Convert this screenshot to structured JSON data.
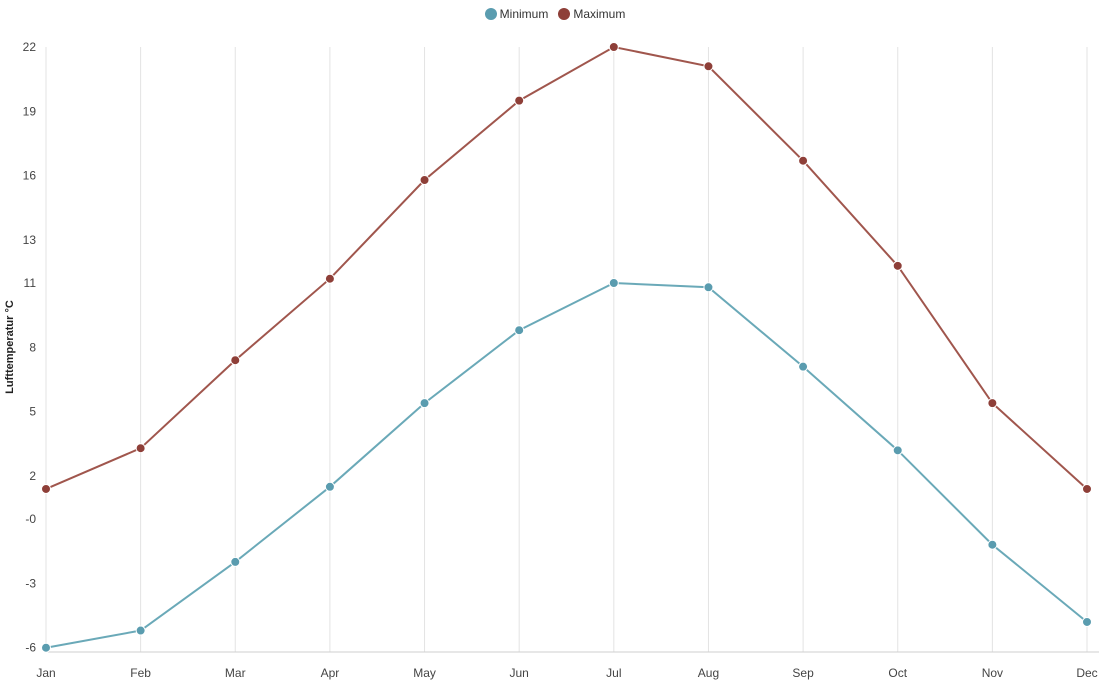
{
  "chart_data": {
    "type": "line",
    "categories": [
      "Jan",
      "Feb",
      "Mar",
      "Apr",
      "May",
      "Jun",
      "Jul",
      "Aug",
      "Sep",
      "Oct",
      "Nov",
      "Dec"
    ],
    "ylabel": "Lufttemperatur °C",
    "ylim": [
      -6.2,
      22
    ],
    "yticks": [
      22,
      19,
      16,
      13,
      11,
      8,
      5,
      2,
      0,
      -3,
      -6
    ],
    "ytick_labels": [
      "22",
      "19",
      "16",
      "13",
      "11",
      "8",
      "5",
      "2",
      "-0",
      "-3",
      "-6"
    ],
    "legend_position": "top-center",
    "grid": "vertical",
    "series": [
      {
        "name": "Minimum",
        "color": "#6aa9b8",
        "marker_color": "#5a9caf",
        "values": [
          -6.0,
          -5.2,
          -2.0,
          1.5,
          5.4,
          8.8,
          11.0,
          10.8,
          7.1,
          3.2,
          -1.2,
          -4.8
        ]
      },
      {
        "name": "Maximum",
        "color": "#a0564d",
        "marker_color": "#8e3f38",
        "values": [
          1.4,
          3.3,
          7.4,
          11.2,
          15.8,
          19.5,
          22.0,
          21.1,
          16.7,
          11.8,
          5.4,
          1.4
        ]
      }
    ]
  }
}
